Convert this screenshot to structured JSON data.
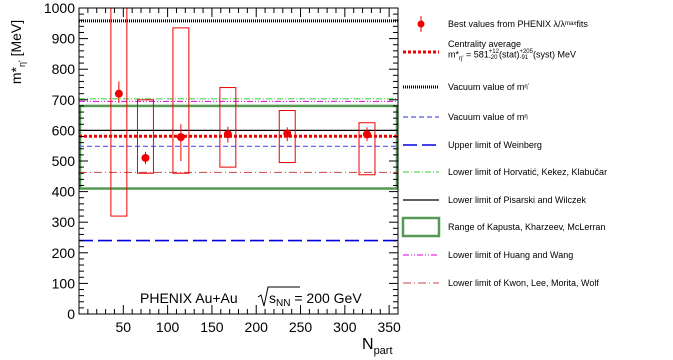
{
  "chart_data": {
    "type": "scatter",
    "title": "",
    "xlabel": "N",
    "xlabel_sub": "part",
    "ylabel": "m*",
    "ylabel_sub": "η'",
    "ylabel_unit": " [MeV]",
    "xlim": [
      0,
      360
    ],
    "ylim": [
      0,
      1000
    ],
    "x_ticks": [
      50,
      100,
      150,
      200,
      250,
      300,
      350
    ],
    "y_ticks": [
      0,
      100,
      200,
      300,
      400,
      500,
      600,
      700,
      800,
      900,
      1000
    ],
    "annotation": {
      "prefix": "PHENIX Au+Au ",
      "sqrt_label": "s",
      "sqrt_sub": "NN",
      "suffix": " = 200 GeV"
    },
    "points": [
      {
        "x": 45,
        "y": 720,
        "stat_lo": 690,
        "stat_hi": 760,
        "syst_lo": 320,
        "syst_hi": 1000,
        "xw": 9
      },
      {
        "x": 75,
        "y": 510,
        "stat_lo": 490,
        "stat_hi": 530,
        "syst_lo": 460,
        "syst_hi": 700,
        "xw": 9
      },
      {
        "x": 115,
        "y": 578,
        "stat_lo": 500,
        "stat_hi": 620,
        "syst_lo": 460,
        "syst_hi": 935,
        "xw": 9
      },
      {
        "x": 168,
        "y": 588,
        "stat_lo": 560,
        "stat_hi": 612,
        "syst_lo": 480,
        "syst_hi": 740,
        "xw": 9
      },
      {
        "x": 235,
        "y": 590,
        "stat_lo": 565,
        "stat_hi": 610,
        "syst_lo": 495,
        "syst_hi": 665,
        "xw": 9
      },
      {
        "x": 325,
        "y": 587,
        "stat_lo": 565,
        "stat_hi": 610,
        "syst_lo": 455,
        "syst_hi": 625,
        "xw": 9
      }
    ],
    "lines": [
      {
        "key": "centrality",
        "y": 581,
        "color": "#ee0000"
      },
      {
        "key": "vac_etaprime",
        "y": 958,
        "color": "#000000"
      },
      {
        "key": "vac_eta",
        "y": 548,
        "color": "#5555ee"
      },
      {
        "key": "weinberg",
        "y": 240,
        "color": "#0000dd"
      },
      {
        "key": "horvatic",
        "y": 703,
        "color": "#33cc33"
      },
      {
        "key": "pisarski",
        "y": 600,
        "color": "#000000"
      },
      {
        "key": "huang",
        "y": 695,
        "color": "#dd00dd"
      },
      {
        "key": "kwon",
        "y": 463,
        "color": "#cc4444"
      }
    ],
    "kapusta_band": {
      "ylo": 410,
      "yhi": 680,
      "color": "#559955"
    },
    "legend": {
      "best": "Best values from PHENIX λ/λ",
      "best_sub": "max",
      "best_suffix": " fits",
      "centrality_line1": "Centrality average",
      "centrality_m": "m*",
      "centrality_m_sub": "η'",
      "centrality_eq": " = 581",
      "centrality_stat_up": "+12",
      "centrality_stat_dn": "-20",
      "centrality_stat_lbl": "(stat)",
      "centrality_syst_up": "+205",
      "centrality_syst_dn": "-91",
      "centrality_syst_lbl": "(syst) MeV",
      "vac_etaprime": "Vacuum value of m",
      "vac_etaprime_sub": "η'",
      "vac_eta": "Vacuum value of m",
      "vac_eta_sub": "η",
      "weinberg": "Upper limit of Weinberg",
      "horvatic": "Lower limit of Horvatić, Kekez, Klabučar",
      "pisarski": "Lower limit of Pisarski and Wilczek",
      "kapusta": "Range of Kapusta, Kharzeev, McLerran",
      "huang": "Lower limit of Huang and Wang",
      "kwon": "Lower limit of Kwon, Lee, Morita, Wolf"
    }
  }
}
